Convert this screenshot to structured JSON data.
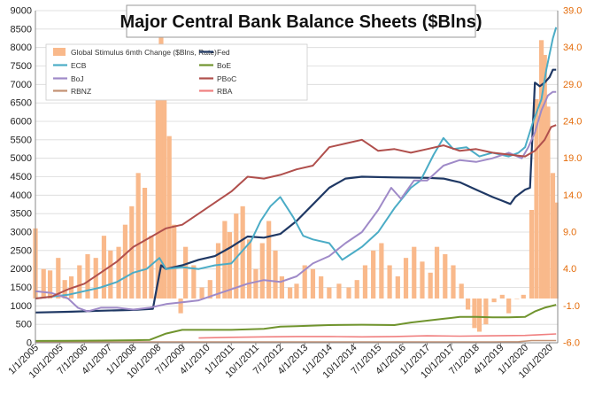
{
  "chart_data": {
    "type": "bar+line",
    "title": "Major Central Bank Balance Sheets ($Blns)",
    "xlabel": "",
    "ylabel": "",
    "ylim": [
      0,
      9000
    ],
    "y2lim": [
      -6.0,
      39.0
    ],
    "yticks": [
      "0",
      "500",
      "1000",
      "1500",
      "2000",
      "2500",
      "3000",
      "3500",
      "4000",
      "4500",
      "5000",
      "5500",
      "6000",
      "6500",
      "7000",
      "7500",
      "8000",
      "8500",
      "9000"
    ],
    "y2ticks": [
      "-6.0",
      "-1.0",
      "4.0",
      "9.0",
      "14.0",
      "19.0",
      "24.0",
      "29.0",
      "34.0",
      "39.0"
    ],
    "x_tick_labels": [
      "1/1/2005",
      "10/1/2005",
      "7/1/2006",
      "4/1/2007",
      "1/1/2008",
      "10/1/2008",
      "7/1/2009",
      "4/1/2010",
      "1/1/2011",
      "10/1/2011",
      "7/1/2012",
      "4/1/2013",
      "1/1/2014",
      "10/1/2014",
      "7/1/2015",
      "4/1/2016",
      "1/1/2017",
      "10/1/2017",
      "7/1/2018",
      "4/1/2019",
      "1/1/2020",
      "10/1/2020"
    ],
    "x_range": [
      2005.0,
      2021.0
    ],
    "legend_position": "top-left",
    "bars": {
      "name": "Global Stimulus 6mth Change ($Blns, Rate)",
      "color": "#f9b98b",
      "baseline": 0.0,
      "points": [
        [
          2005.0,
          9.5
        ],
        [
          2005.25,
          4.0
        ],
        [
          2005.45,
          3.8
        ],
        [
          2005.7,
          5.5
        ],
        [
          2005.9,
          2.5
        ],
        [
          2006.1,
          3.0
        ],
        [
          2006.35,
          4.5
        ],
        [
          2006.6,
          6.0
        ],
        [
          2006.85,
          5.5
        ],
        [
          2007.1,
          8.5
        ],
        [
          2007.3,
          6.5
        ],
        [
          2007.55,
          7.0
        ],
        [
          2007.75,
          10.0
        ],
        [
          2007.95,
          12.5
        ],
        [
          2008.15,
          17.0
        ],
        [
          2008.35,
          15.0
        ],
        [
          2008.55,
          8.5
        ],
        [
          2008.75,
          33.5
        ],
        [
          2008.85,
          37.5
        ],
        [
          2008.95,
          30.0
        ],
        [
          2009.1,
          22.0
        ],
        [
          2009.25,
          10.0
        ],
        [
          2009.45,
          -2.0
        ],
        [
          2009.6,
          7.0
        ],
        [
          2009.85,
          4.5
        ],
        [
          2010.1,
          1.5
        ],
        [
          2010.35,
          2.5
        ],
        [
          2010.6,
          7.5
        ],
        [
          2010.8,
          10.5
        ],
        [
          2010.95,
          9.0
        ],
        [
          2011.15,
          11.5
        ],
        [
          2011.35,
          12.5
        ],
        [
          2011.55,
          8.0
        ],
        [
          2011.75,
          4.0
        ],
        [
          2011.95,
          7.5
        ],
        [
          2012.15,
          10.5
        ],
        [
          2012.35,
          6.5
        ],
        [
          2012.55,
          3.0
        ],
        [
          2012.8,
          1.5
        ],
        [
          2013.0,
          2.0
        ],
        [
          2013.25,
          4.5
        ],
        [
          2013.5,
          4.0
        ],
        [
          2013.75,
          3.0
        ],
        [
          2014.0,
          1.5
        ],
        [
          2014.3,
          2.0
        ],
        [
          2014.6,
          1.5
        ],
        [
          2014.85,
          2.5
        ],
        [
          2015.1,
          4.5
        ],
        [
          2015.35,
          6.5
        ],
        [
          2015.6,
          7.5
        ],
        [
          2015.85,
          4.5
        ],
        [
          2016.1,
          3.0
        ],
        [
          2016.35,
          5.5
        ],
        [
          2016.6,
          7.0
        ],
        [
          2016.85,
          5.0
        ],
        [
          2017.1,
          3.5
        ],
        [
          2017.3,
          7.0
        ],
        [
          2017.55,
          6.0
        ],
        [
          2017.8,
          4.5
        ],
        [
          2018.05,
          2.0
        ],
        [
          2018.25,
          -1.5
        ],
        [
          2018.45,
          -4.0
        ],
        [
          2018.6,
          -4.5
        ],
        [
          2018.8,
          -3.5
        ],
        [
          2019.05,
          -0.5
        ],
        [
          2019.3,
          0.5
        ],
        [
          2019.5,
          -2.0
        ],
        [
          2019.75,
          0.0
        ],
        [
          2019.95,
          0.5
        ],
        [
          2020.2,
          12.0
        ],
        [
          2020.35,
          27.0
        ],
        [
          2020.5,
          35.0
        ],
        [
          2020.6,
          33.0
        ],
        [
          2020.7,
          26.0
        ],
        [
          2020.85,
          17.0
        ],
        [
          2020.95,
          13.0
        ]
      ]
    },
    "series": [
      {
        "name": "Fed",
        "axis": "left",
        "color": "#1f3864",
        "width": 2.2,
        "points": [
          [
            2005.0,
            820
          ],
          [
            2006.0,
            840
          ],
          [
            2007.0,
            870
          ],
          [
            2008.0,
            890
          ],
          [
            2008.6,
            920
          ],
          [
            2008.72,
            1500
          ],
          [
            2008.85,
            2100
          ],
          [
            2009.0,
            2000
          ],
          [
            2009.5,
            2100
          ],
          [
            2010.0,
            2250
          ],
          [
            2010.5,
            2350
          ],
          [
            2011.0,
            2600
          ],
          [
            2011.5,
            2880
          ],
          [
            2012.0,
            2850
          ],
          [
            2012.5,
            2950
          ],
          [
            2013.0,
            3300
          ],
          [
            2013.5,
            3750
          ],
          [
            2014.0,
            4200
          ],
          [
            2014.5,
            4450
          ],
          [
            2015.0,
            4500
          ],
          [
            2016.0,
            4480
          ],
          [
            2017.0,
            4470
          ],
          [
            2017.5,
            4450
          ],
          [
            2018.0,
            4350
          ],
          [
            2018.5,
            4150
          ],
          [
            2019.0,
            3950
          ],
          [
            2019.3,
            3850
          ],
          [
            2019.55,
            3760
          ],
          [
            2019.7,
            3950
          ],
          [
            2020.0,
            4150
          ],
          [
            2020.15,
            4200
          ],
          [
            2020.3,
            7050
          ],
          [
            2020.45,
            6950
          ],
          [
            2020.6,
            7050
          ],
          [
            2020.75,
            7200
          ],
          [
            2020.85,
            7400
          ],
          [
            2020.95,
            7400
          ]
        ]
      },
      {
        "name": "ECB",
        "axis": "left",
        "color": "#4bacc6",
        "width": 2.0,
        "points": [
          [
            2005.0,
            1200
          ],
          [
            2005.5,
            1250
          ],
          [
            2006.0,
            1300
          ],
          [
            2006.5,
            1400
          ],
          [
            2007.0,
            1500
          ],
          [
            2007.5,
            1650
          ],
          [
            2008.0,
            1900
          ],
          [
            2008.4,
            2000
          ],
          [
            2008.8,
            2300
          ],
          [
            2009.0,
            2000
          ],
          [
            2009.5,
            2050
          ],
          [
            2010.0,
            2000
          ],
          [
            2010.5,
            2100
          ],
          [
            2011.0,
            2150
          ],
          [
            2011.3,
            2450
          ],
          [
            2011.6,
            2750
          ],
          [
            2011.9,
            3300
          ],
          [
            2012.2,
            3700
          ],
          [
            2012.5,
            3950
          ],
          [
            2012.9,
            3400
          ],
          [
            2013.2,
            2900
          ],
          [
            2013.5,
            2800
          ],
          [
            2014.0,
            2700
          ],
          [
            2014.4,
            2250
          ],
          [
            2014.75,
            2450
          ],
          [
            2015.0,
            2600
          ],
          [
            2015.5,
            3000
          ],
          [
            2016.0,
            3650
          ],
          [
            2016.5,
            4200
          ],
          [
            2016.8,
            4400
          ],
          [
            2017.2,
            5100
          ],
          [
            2017.5,
            5550
          ],
          [
            2017.8,
            5250
          ],
          [
            2018.2,
            5300
          ],
          [
            2018.6,
            5050
          ],
          [
            2019.0,
            5150
          ],
          [
            2019.5,
            5050
          ],
          [
            2019.8,
            5150
          ],
          [
            2020.0,
            5300
          ],
          [
            2020.25,
            6000
          ],
          [
            2020.5,
            6600
          ],
          [
            2020.65,
            7400
          ],
          [
            2020.85,
            8250
          ],
          [
            2020.95,
            8550
          ]
        ]
      },
      {
        "name": "BoJ",
        "axis": "left",
        "color": "#9f8ac8",
        "width": 2.0,
        "points": [
          [
            2005.0,
            1400
          ],
          [
            2005.5,
            1350
          ],
          [
            2006.0,
            1200
          ],
          [
            2006.3,
            950
          ],
          [
            2006.6,
            850
          ],
          [
            2007.0,
            950
          ],
          [
            2007.5,
            950
          ],
          [
            2008.0,
            900
          ],
          [
            2008.5,
            950
          ],
          [
            2009.0,
            1050
          ],
          [
            2009.5,
            1100
          ],
          [
            2010.0,
            1150
          ],
          [
            2010.5,
            1300
          ],
          [
            2011.0,
            1450
          ],
          [
            2011.5,
            1600
          ],
          [
            2012.0,
            1700
          ],
          [
            2012.5,
            1650
          ],
          [
            2013.0,
            1800
          ],
          [
            2013.5,
            2150
          ],
          [
            2014.0,
            2350
          ],
          [
            2014.5,
            2700
          ],
          [
            2015.0,
            3000
          ],
          [
            2015.5,
            3600
          ],
          [
            2015.9,
            4200
          ],
          [
            2016.2,
            3900
          ],
          [
            2016.6,
            4400
          ],
          [
            2017.0,
            4400
          ],
          [
            2017.5,
            4800
          ],
          [
            2018.0,
            4950
          ],
          [
            2018.5,
            4900
          ],
          [
            2019.0,
            5000
          ],
          [
            2019.5,
            5150
          ],
          [
            2019.9,
            5000
          ],
          [
            2020.1,
            5300
          ],
          [
            2020.3,
            5700
          ],
          [
            2020.5,
            6300
          ],
          [
            2020.7,
            6700
          ],
          [
            2020.85,
            6800
          ],
          [
            2020.95,
            6800
          ]
        ]
      },
      {
        "name": "RBNZ",
        "axis": "left",
        "color": "#c39173",
        "width": 1.6,
        "points": [
          [
            2005.0,
            15
          ],
          [
            2006.0,
            18
          ],
          [
            2007.0,
            20
          ],
          [
            2008.0,
            25
          ],
          [
            2009.0,
            25
          ],
          [
            2010.0,
            25
          ],
          [
            2011.0,
            25
          ],
          [
            2012.0,
            25
          ],
          [
            2013.0,
            25
          ],
          [
            2014.0,
            25
          ],
          [
            2015.0,
            25
          ],
          [
            2016.0,
            25
          ],
          [
            2017.0,
            25
          ],
          [
            2018.0,
            25
          ],
          [
            2019.0,
            25
          ],
          [
            2019.8,
            30
          ],
          [
            2020.2,
            60
          ],
          [
            2020.5,
            60
          ],
          [
            2020.95,
            60
          ]
        ]
      },
      {
        "name": "BoE",
        "axis": "left",
        "color": "#70942e",
        "width": 2.0,
        "points": [
          [
            2005.0,
            50
          ],
          [
            2006.0,
            55
          ],
          [
            2007.0,
            60
          ],
          [
            2008.0,
            70
          ],
          [
            2008.5,
            80
          ],
          [
            2009.0,
            250
          ],
          [
            2009.5,
            350
          ],
          [
            2010.0,
            350
          ],
          [
            2011.0,
            350
          ],
          [
            2012.0,
            380
          ],
          [
            2012.5,
            440
          ],
          [
            2013.0,
            450
          ],
          [
            2014.0,
            480
          ],
          [
            2015.0,
            490
          ],
          [
            2016.0,
            480
          ],
          [
            2016.5,
            550
          ],
          [
            2017.0,
            600
          ],
          [
            2017.5,
            650
          ],
          [
            2018.0,
            700
          ],
          [
            2018.5,
            700
          ],
          [
            2019.0,
            690
          ],
          [
            2019.5,
            690
          ],
          [
            2020.0,
            700
          ],
          [
            2020.3,
            850
          ],
          [
            2020.6,
            950
          ],
          [
            2020.95,
            1030
          ]
        ]
      },
      {
        "name": "PBoC",
        "axis": "left",
        "color": "#b04f4c",
        "width": 2.0,
        "points": [
          [
            2005.0,
            1200
          ],
          [
            2005.5,
            1250
          ],
          [
            2006.0,
            1450
          ],
          [
            2006.5,
            1600
          ],
          [
            2007.0,
            1900
          ],
          [
            2007.5,
            2200
          ],
          [
            2008.0,
            2600
          ],
          [
            2008.5,
            2850
          ],
          [
            2009.0,
            3100
          ],
          [
            2009.5,
            3200
          ],
          [
            2010.0,
            3500
          ],
          [
            2010.5,
            3800
          ],
          [
            2011.0,
            4100
          ],
          [
            2011.5,
            4500
          ],
          [
            2012.0,
            4450
          ],
          [
            2012.5,
            4550
          ],
          [
            2013.0,
            4700
          ],
          [
            2013.5,
            4800
          ],
          [
            2014.0,
            5300
          ],
          [
            2014.5,
            5400
          ],
          [
            2015.0,
            5500
          ],
          [
            2015.5,
            5200
          ],
          [
            2016.0,
            5250
          ],
          [
            2016.5,
            5150
          ],
          [
            2017.0,
            5250
          ],
          [
            2017.5,
            5350
          ],
          [
            2018.0,
            5200
          ],
          [
            2018.5,
            5250
          ],
          [
            2019.0,
            5150
          ],
          [
            2019.5,
            5100
          ],
          [
            2020.0,
            5050
          ],
          [
            2020.3,
            5200
          ],
          [
            2020.6,
            5500
          ],
          [
            2020.8,
            5850
          ],
          [
            2020.95,
            5900
          ]
        ]
      },
      {
        "name": "RBA",
        "axis": "left",
        "color": "#f08080",
        "width": 1.6,
        "points": [
          [
            2010.0,
            130
          ],
          [
            2011.0,
            150
          ],
          [
            2012.0,
            160
          ],
          [
            2013.0,
            170
          ],
          [
            2014.0,
            170
          ],
          [
            2015.0,
            160
          ],
          [
            2016.0,
            170
          ],
          [
            2017.0,
            190
          ],
          [
            2018.0,
            180
          ],
          [
            2019.0,
            190
          ],
          [
            2020.0,
            200
          ],
          [
            2020.5,
            220
          ],
          [
            2020.95,
            240
          ]
        ]
      }
    ]
  }
}
